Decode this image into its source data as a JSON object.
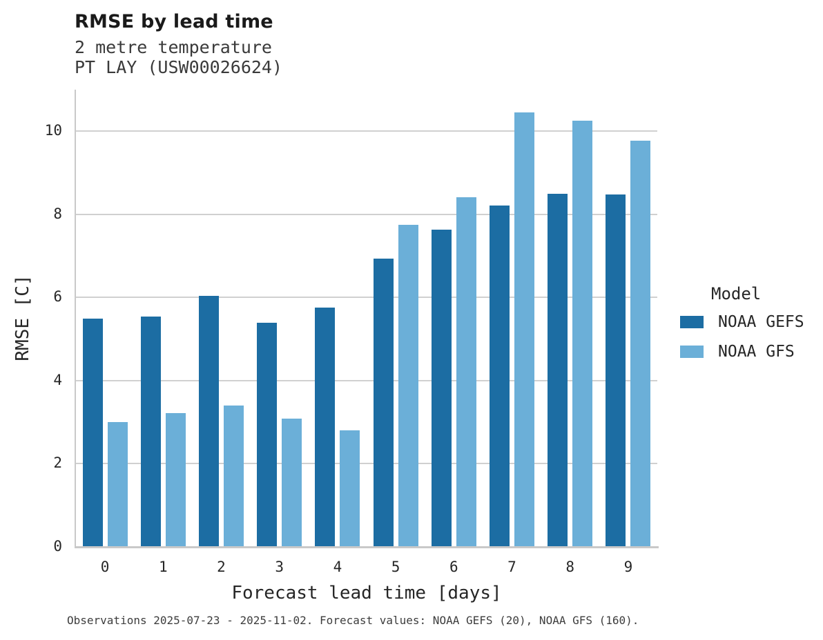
{
  "chart_data": {
    "type": "bar",
    "grouped": true,
    "title": "RMSE by lead time",
    "subtitle": [
      "2 metre temperature",
      "PT LAY (USW00026624)"
    ],
    "xlabel": "Forecast lead time [days]",
    "ylabel": "RMSE [C]",
    "categories": [
      "0",
      "1",
      "2",
      "3",
      "4",
      "5",
      "6",
      "7",
      "8",
      "9"
    ],
    "series": [
      {
        "name": "NOAA GEFS",
        "color": "#1c6da3",
        "values": [
          5.5,
          5.54,
          6.04,
          5.4,
          5.75,
          6.94,
          7.64,
          8.21,
          8.5,
          8.48
        ]
      },
      {
        "name": "NOAA GFS",
        "color": "#6bafd8",
        "values": [
          3.0,
          3.22,
          3.4,
          3.09,
          2.8,
          7.74,
          8.42,
          10.45,
          10.26,
          9.78
        ]
      }
    ],
    "ylim": [
      0,
      11
    ],
    "yticks": [
      0,
      2,
      4,
      6,
      8,
      10
    ],
    "grid": "horizontal gridlines at even values, drawn behind bars",
    "legend_title": "Model",
    "legend_position": "right",
    "caption": "Observations 2025-07-23 - 2025-11-02. Forecast values: NOAA GEFS (20), NOAA GFS (160)."
  }
}
